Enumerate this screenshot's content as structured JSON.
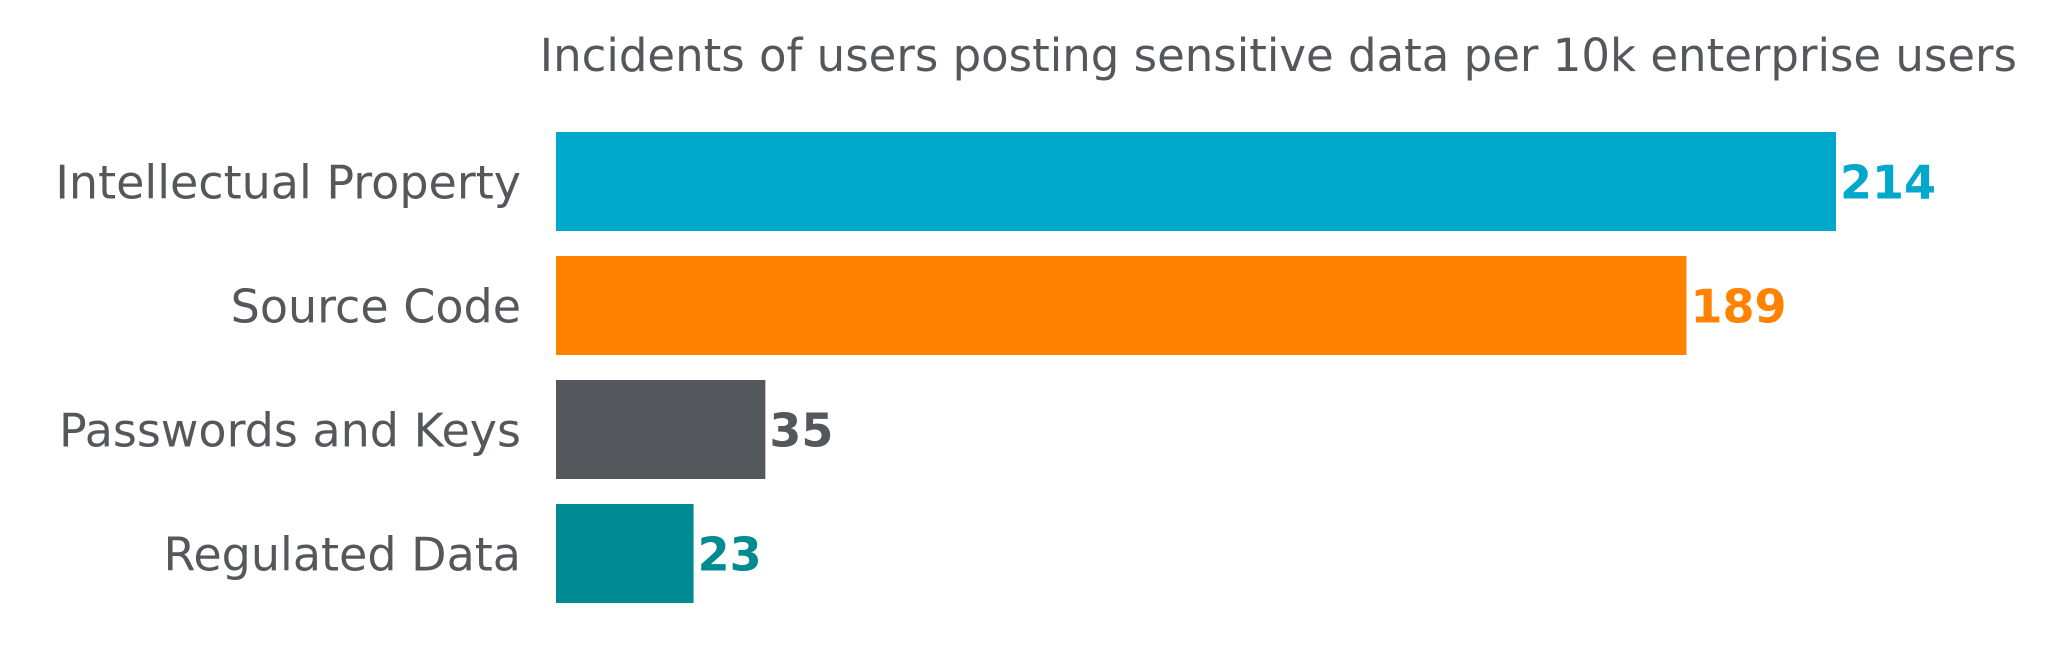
{
  "chart_data": {
    "type": "bar",
    "orientation": "horizontal",
    "title": "Incidents of users posting sensitive data per 10k enterprise users",
    "xlabel": "",
    "ylabel": "",
    "categories": [
      "Intellectual Property",
      "Source Code",
      "Passwords and Keys",
      "Regulated Data"
    ],
    "values": [
      214,
      189,
      35,
      23
    ],
    "data_labels": [
      "214",
      "189",
      "35",
      "23"
    ],
    "colors": [
      "#00a9cc",
      "#ff8300",
      "#54575b",
      "#008b92"
    ],
    "label_color": "#54575b",
    "xlim": [
      0,
      214
    ],
    "grid": false,
    "axes_visible": false,
    "legend": "none"
  }
}
